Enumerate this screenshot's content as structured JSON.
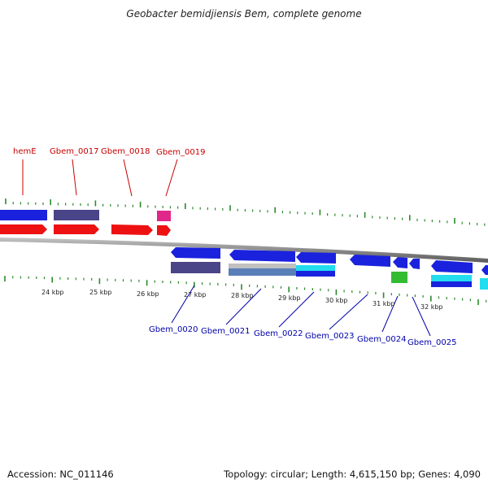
{
  "title": "Geobacter bemidjiensis Bem, complete genome",
  "footer": {
    "accession": "Accession: NC_011146",
    "topology": "Topology: circular; Length: 4,615,150 bp; Genes: 4,090"
  },
  "colors": {
    "forward_cds": "#ee1111",
    "reverse_cds": "#1a22dd",
    "cog_purple": "#4a4488",
    "magenta": "#e0288a",
    "cyan": "#22ddee",
    "green": "#33bb33",
    "grey_backbone": "#888888",
    "tick_green": "#2a8a2a",
    "label_top": "#c80000",
    "label_bottom": "#0000aa"
  },
  "top_labels": [
    "hemE",
    "Gbem_0017",
    "Gbem_0018",
    "Gbem_0019"
  ],
  "bottom_labels": [
    "Gbem_0020",
    "Gbem_0021",
    "Gbem_0022",
    "Gbem_0023",
    "Gbem_0024",
    "Gbem_0025"
  ],
  "tick_labels": [
    "24 kbp",
    "25 kbp",
    "26 kbp",
    "27 kbp",
    "28 kbp",
    "29 kbp",
    "30 kbp",
    "31 kbp",
    "32 kbp"
  ]
}
